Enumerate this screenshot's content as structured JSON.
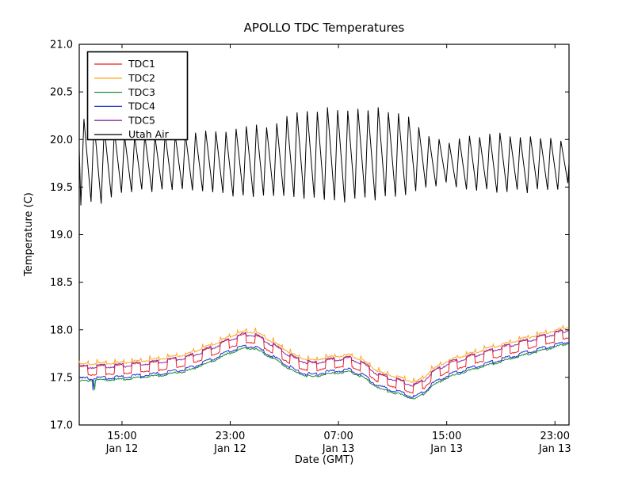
{
  "figure": {
    "title": "APOLLO TDC Temperatures",
    "xlabel": "Date (GMT)",
    "ylabel": "Temperature (C)",
    "background_color": "#ffffff",
    "frame_color": "#000000",
    "text_color": "#000000"
  },
  "chart_data": {
    "type": "line",
    "title": "APOLLO TDC Temperatures",
    "xlabel": "Date (GMT)",
    "ylabel": "Temperature (C)",
    "ylim": [
      17.0,
      21.0
    ],
    "yticks": [
      17.0,
      17.5,
      18.0,
      18.5,
      19.0,
      19.5,
      20.0,
      20.5,
      21.0
    ],
    "x_domain_hours": [
      0,
      36.2
    ],
    "xticks": [
      {
        "t": 3.16,
        "time": "15:00",
        "date": "Jan 12"
      },
      {
        "t": 11.16,
        "time": "23:00",
        "date": "Jan 12"
      },
      {
        "t": 19.16,
        "time": "07:00",
        "date": "Jan 13"
      },
      {
        "t": 27.16,
        "time": "15:00",
        "date": "Jan 13"
      },
      {
        "t": 35.16,
        "time": "23:00",
        "date": "Jan 13"
      }
    ],
    "legend": {
      "position": "upper-left",
      "entries": [
        "TDC1",
        "TDC2",
        "TDC3",
        "TDC4",
        "TDC5",
        "Utah Air"
      ]
    },
    "grid": false,
    "square_wave_period_hours": 1.3,
    "tdc_base_curve_c": [
      [
        0,
        17.46
      ],
      [
        1,
        17.47
      ],
      [
        3.2,
        17.48
      ],
      [
        6,
        17.52
      ],
      [
        8,
        17.57
      ],
      [
        10,
        17.68
      ],
      [
        11.2,
        17.76
      ],
      [
        12.3,
        17.81
      ],
      [
        13,
        17.8
      ],
      [
        14.3,
        17.7
      ],
      [
        16,
        17.55
      ],
      [
        17.3,
        17.5
      ],
      [
        18,
        17.53
      ],
      [
        19.2,
        17.55
      ],
      [
        20,
        17.56
      ],
      [
        21,
        17.5
      ],
      [
        22.2,
        17.38
      ],
      [
        23,
        17.35
      ],
      [
        24,
        17.31
      ],
      [
        24.8,
        17.27
      ],
      [
        25.5,
        17.33
      ],
      [
        26,
        17.4
      ],
      [
        27.2,
        17.5
      ],
      [
        29,
        17.58
      ],
      [
        31,
        17.66
      ],
      [
        33,
        17.74
      ],
      [
        35.2,
        17.82
      ],
      [
        36.2,
        17.86
      ]
    ],
    "series": [
      {
        "name": "TDC1",
        "color": "#ee2222",
        "kind": "tdc",
        "offset": 0.105,
        "square_amp": 0.048,
        "spikes": false
      },
      {
        "name": "TDC2",
        "color": "#ffa626",
        "kind": "tdc",
        "offset": 0.175,
        "square_amp": 0.008,
        "spikes": true
      },
      {
        "name": "TDC3",
        "color": "#1e8c3a",
        "kind": "tdc",
        "offset": 0.0,
        "square_amp": 0.006,
        "spikes": false
      },
      {
        "name": "TDC4",
        "color": "#2633cc",
        "kind": "tdc",
        "offset": 0.022,
        "square_amp": 0.012,
        "spikes": false
      },
      {
        "name": "TDC5",
        "color": "#8b2fa8",
        "kind": "tdc",
        "offset": 0.145,
        "square_amp": 0.016,
        "spikes": false
      },
      {
        "name": "Utah Air",
        "color": "#000000",
        "kind": "sawtooth",
        "period_hours": 0.75,
        "rise_fraction": 0.3,
        "envelope_peak_trough": [
          [
            0,
            20.2,
            19.32
          ],
          [
            1.5,
            20.18,
            19.34
          ],
          [
            3,
            20.03,
            19.45
          ],
          [
            8,
            20.05,
            19.47
          ],
          [
            11,
            20.1,
            19.42
          ],
          [
            12.5,
            20.17,
            19.4
          ],
          [
            14,
            20.12,
            19.42
          ],
          [
            15.5,
            20.28,
            19.38
          ],
          [
            18,
            20.32,
            19.36
          ],
          [
            20,
            20.3,
            19.35
          ],
          [
            22,
            20.32,
            19.38
          ],
          [
            24,
            20.28,
            19.4
          ],
          [
            25.5,
            20.05,
            19.5
          ],
          [
            27,
            19.97,
            19.53
          ],
          [
            28.5,
            20.04,
            19.47
          ],
          [
            32,
            20.05,
            19.45
          ],
          [
            35,
            20.03,
            19.47
          ],
          [
            36.2,
            19.95,
            19.55
          ]
        ],
        "endpoints": {
          "start_value": 19.9,
          "end_value": 19.75
        }
      }
    ],
    "anomaly_spikes": [
      {
        "series": "TDC4",
        "t": 1.0,
        "dv": -0.12
      },
      {
        "series": "TDC3",
        "t": 1.15,
        "dv": -0.1
      }
    ]
  }
}
